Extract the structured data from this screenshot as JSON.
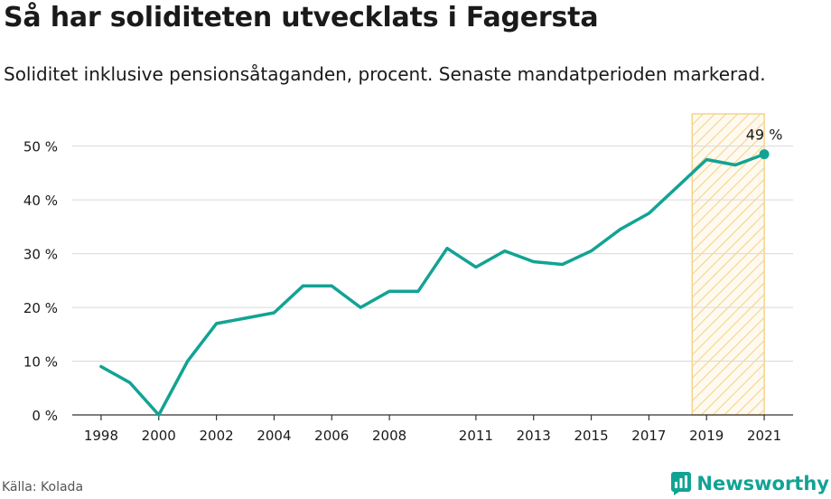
{
  "title": "Så har soliditeten utvecklats i Fagersta",
  "subtitle": "Soliditet inklusive pensionsåtaganden, procent. Senaste mandatperioden markerad.",
  "source": "Källa: Kolada",
  "brand": {
    "name": "Newsworthy",
    "icon": "newsworthy-logo-icon"
  },
  "colors": {
    "line": "#12a394",
    "highlight_stroke": "#f6d28c",
    "grid": "#d9d9d9",
    "axis": "#333333",
    "text": "#1a1a1a"
  },
  "chart_data": {
    "type": "line",
    "title": "Så har soliditeten utvecklats i Fagersta",
    "ylabel": "",
    "xlabel": "",
    "x": [
      1998,
      1999,
      2000,
      2001,
      2002,
      2003,
      2004,
      2005,
      2006,
      2007,
      2008,
      2009,
      2010,
      2011,
      2012,
      2013,
      2014,
      2015,
      2016,
      2017,
      2018,
      2019,
      2020,
      2021
    ],
    "series": [
      {
        "values": [
          9,
          6,
          0,
          10,
          17,
          18,
          19,
          24,
          24,
          20,
          23,
          23,
          31,
          27.5,
          30.5,
          28.5,
          28,
          30.5,
          34.5,
          37.5,
          42.5,
          47.5,
          46.5,
          48.5
        ]
      }
    ],
    "xticks": [
      1998,
      2000,
      2002,
      2004,
      2006,
      2008,
      2011,
      2013,
      2015,
      2017,
      2019,
      2021
    ],
    "xtick_labels": [
      "1998",
      "2000",
      "2002",
      "2004",
      "2006",
      "2008",
      "2011",
      "2013",
      "2015",
      "2017",
      "2019",
      "2021"
    ],
    "yticks": [
      0,
      10,
      20,
      30,
      40,
      50
    ],
    "ytick_labels": [
      "0 %",
      "10 %",
      "20 %",
      "30 %",
      "40 %",
      "50 %"
    ],
    "ylim": [
      0,
      56
    ],
    "xlim": [
      1997,
      2022
    ],
    "highlight_range": [
      2018.5,
      2021
    ],
    "last_value_label": "49 %",
    "grid": true,
    "legend": "none"
  }
}
